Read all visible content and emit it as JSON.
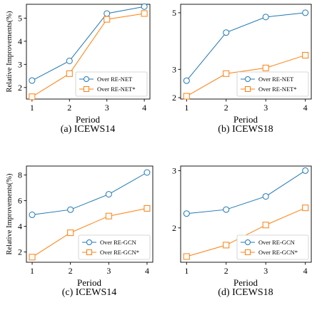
{
  "chart_data": [
    {
      "type": "line",
      "caption": "(a) ICEWS14",
      "xlabel": "Period",
      "ylabel": "Relative Improvements(%)",
      "x": [
        1,
        2,
        3,
        4
      ],
      "xlim": [
        0.85,
        4.15
      ],
      "ylim": [
        1.5,
        5.6
      ],
      "yticks": [
        2,
        3,
        4,
        5
      ],
      "legend_position": "lower-right",
      "series": [
        {
          "name": "Over RE-NET",
          "color": "#1f77b4",
          "marker": "circle",
          "values": [
            2.3,
            3.15,
            5.2,
            5.5
          ]
        },
        {
          "name": "Over RE-NET*",
          "color": "#ff7f0e",
          "marker": "square",
          "values": [
            1.6,
            2.6,
            4.95,
            5.2
          ]
        }
      ]
    },
    {
      "type": "line",
      "caption": "(b) ICEWS18",
      "xlabel": "Period",
      "ylabel": "",
      "x": [
        1,
        2,
        3,
        4
      ],
      "xlim": [
        0.85,
        4.15
      ],
      "ylim": [
        1.95,
        5.3
      ],
      "yticks": [
        2,
        3,
        5
      ],
      "legend_position": "lower-right",
      "series": [
        {
          "name": "Over RE-NET",
          "color": "#1f77b4",
          "marker": "circle",
          "values": [
            2.6,
            4.3,
            4.85,
            5.0
          ]
        },
        {
          "name": "Over RE-NET*",
          "color": "#ff7f0e",
          "marker": "square",
          "values": [
            2.05,
            2.85,
            3.05,
            3.5
          ]
        }
      ]
    },
    {
      "type": "line",
      "caption": "(c) ICEWS14",
      "xlabel": "Period",
      "ylabel": "Relative Improvements(%)",
      "x": [
        1,
        2,
        3,
        4
      ],
      "xlim": [
        0.85,
        4.15
      ],
      "ylim": [
        1.2,
        8.7
      ],
      "yticks": [
        2,
        4,
        6,
        8
      ],
      "legend_position": "lower-right",
      "series": [
        {
          "name": "Over RE-GCN",
          "color": "#1f77b4",
          "marker": "circle",
          "values": [
            4.9,
            5.3,
            6.5,
            8.2
          ]
        },
        {
          "name": "Over RE-GCN*",
          "color": "#ff7f0e",
          "marker": "square",
          "values": [
            1.6,
            3.5,
            4.8,
            5.4
          ]
        }
      ]
    },
    {
      "type": "line",
      "caption": "(d) ICEWS18",
      "xlabel": "Period",
      "ylabel": "",
      "x": [
        1,
        2,
        3,
        4
      ],
      "xlim": [
        0.85,
        4.15
      ],
      "ylim": [
        1.4,
        3.08
      ],
      "yticks": [
        2,
        3
      ],
      "legend_position": "lower-right",
      "series": [
        {
          "name": "Over RE-GCN",
          "color": "#1f77b4",
          "marker": "circle",
          "values": [
            2.25,
            2.32,
            2.55,
            3.0
          ]
        },
        {
          "name": "Over RE-GCN*",
          "color": "#ff7f0e",
          "marker": "square",
          "values": [
            1.5,
            1.7,
            2.05,
            2.35
          ]
        }
      ]
    }
  ]
}
